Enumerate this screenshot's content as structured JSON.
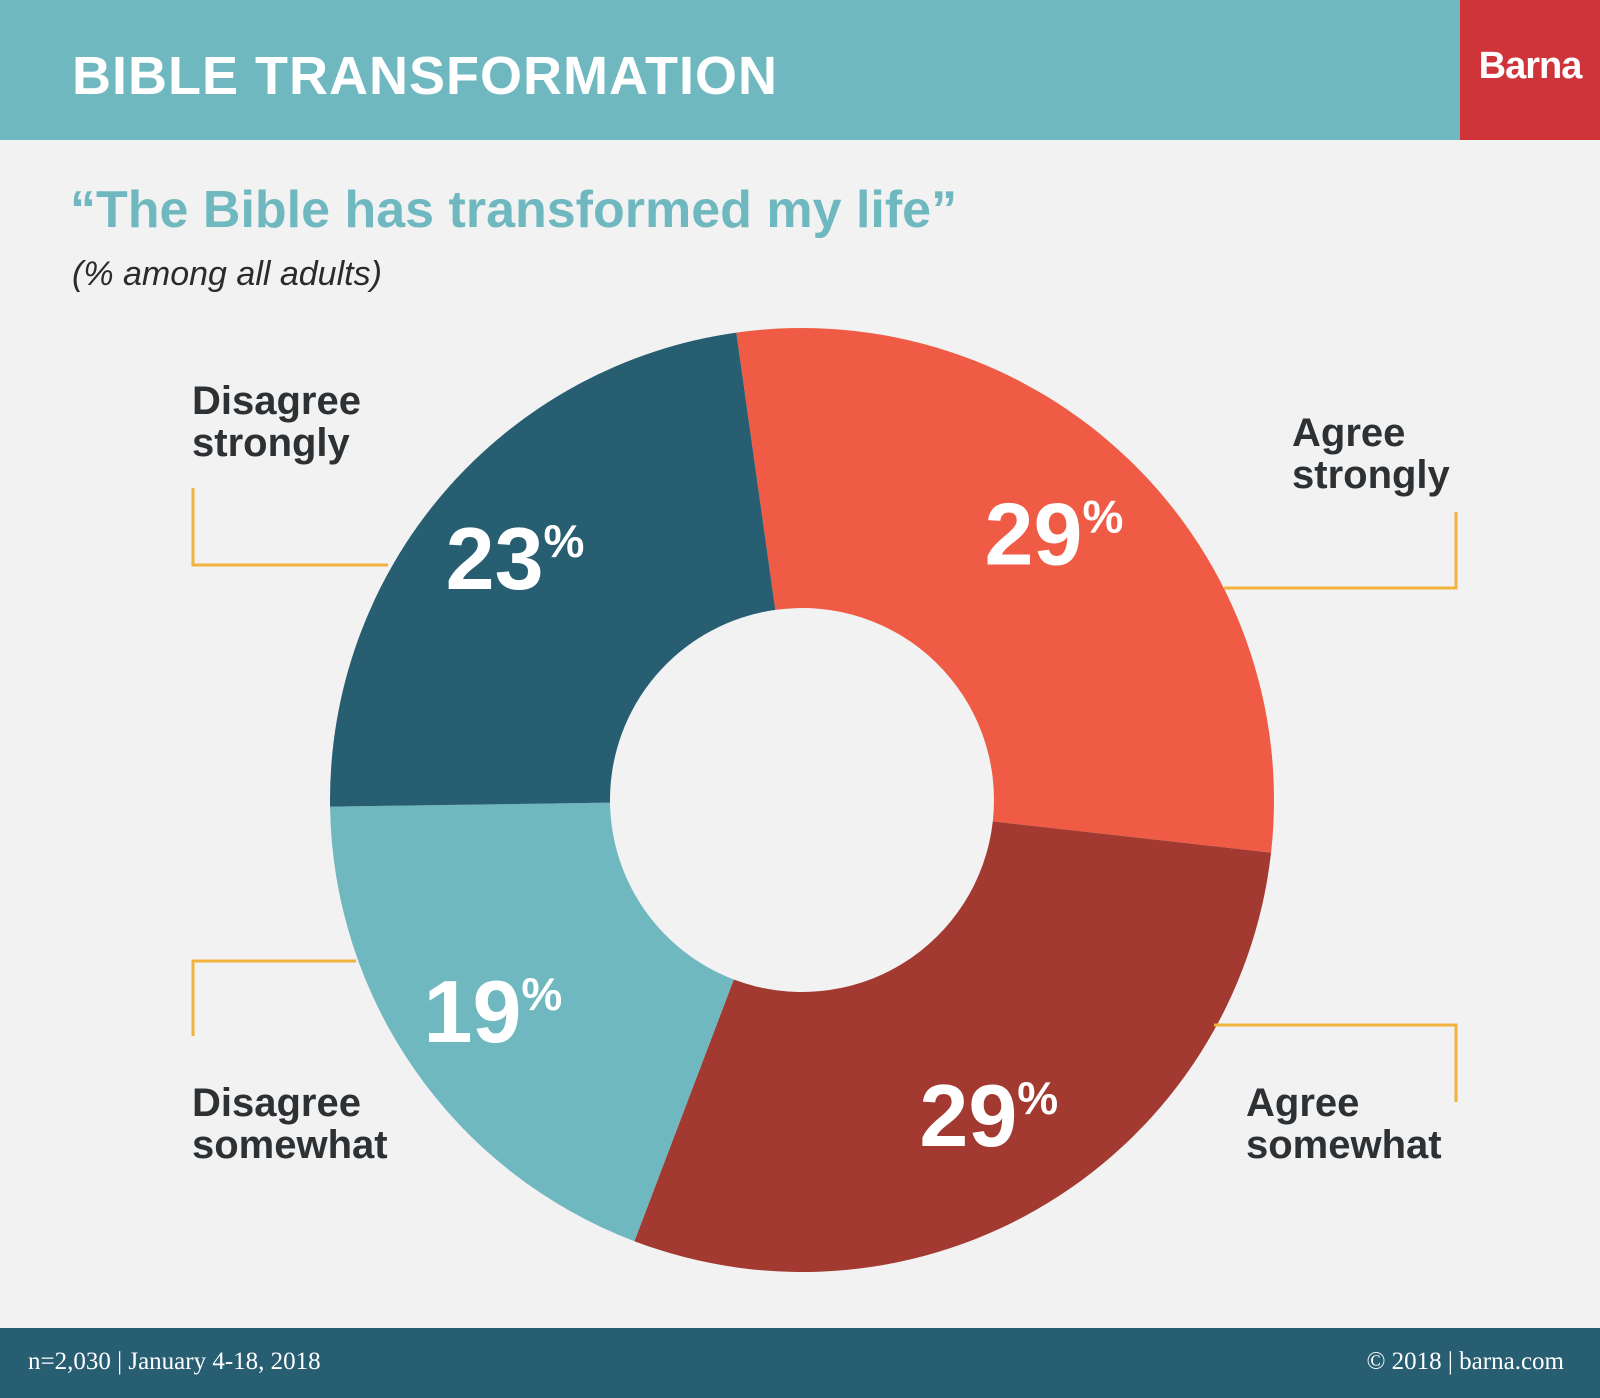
{
  "header": {
    "title": "BIBLE TRANSFORMATION",
    "logo": "Barna",
    "background_color": "#6fb8bf",
    "logo_color": "#cf343b"
  },
  "chart_data": {
    "type": "pie",
    "donut": true,
    "title": "“The Bible has transformed my life”",
    "subtitle": "(% among all adults)",
    "slices": [
      {
        "name": "Agree strongly",
        "value": 29,
        "label": "29",
        "color": "#ef5b45"
      },
      {
        "name": "Agree somewhat",
        "value": 29,
        "label": "29",
        "color": "#a23a32"
      },
      {
        "name": "Disagree somewhat",
        "value": 19,
        "label": "19",
        "color": "#6fb8bf"
      },
      {
        "name": "Disagree strongly",
        "value": 23,
        "label": "23",
        "color": "#275e72"
      }
    ],
    "percent_sign": "%"
  },
  "labels": {
    "agree_strongly": [
      "Agree",
      "strongly"
    ],
    "agree_somewhat": [
      "Agree",
      "somewhat"
    ],
    "disagree_somewhat": [
      "Disagree",
      "somewhat"
    ],
    "disagree_strongly": [
      "Disagree",
      "strongly"
    ]
  },
  "footer": {
    "left": "n=2,030 | January 4-18, 2018",
    "right": "© 2018 | barna.com",
    "background_color": "#275e72"
  }
}
